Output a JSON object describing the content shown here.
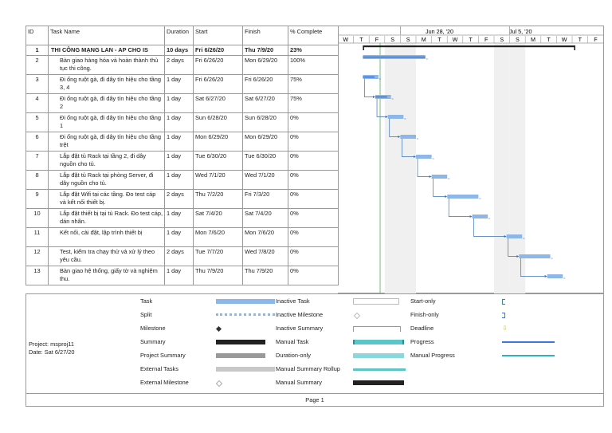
{
  "columns": {
    "id": "ID",
    "name": "Task Name",
    "duration": "Duration",
    "start": "Start",
    "finish": "Finish",
    "complete": "% Complete"
  },
  "timescale": {
    "weeks": [
      "Jun 28, '20",
      "Jul 5, '20"
    ],
    "days": [
      "W",
      "T",
      "F",
      "S",
      "S",
      "M",
      "T",
      "W",
      "T",
      "F",
      "S",
      "S",
      "M",
      "T",
      "W",
      "T",
      "F"
    ]
  },
  "tasks": [
    {
      "id": "1",
      "name": "THI CÔNG MẠNG LAN - AP CHO IS",
      "duration": "10 days",
      "start": "Fri 6/26/20",
      "finish": "Thu 7/9/20",
      "complete": "23%"
    },
    {
      "id": "2",
      "name": "Bàn giao hàng hóa và hoàn thành thủ tục thi công.",
      "duration": "2 days",
      "start": "Fri 6/26/20",
      "finish": "Mon 6/29/20",
      "complete": "100%"
    },
    {
      "id": "3",
      "name": "Đi ống ruột gà, đi dây tín hiệu cho tầng 3, 4",
      "duration": "1 day",
      "start": "Fri 6/26/20",
      "finish": "Fri 6/26/20",
      "complete": "75%"
    },
    {
      "id": "4",
      "name": "Đi ống ruột gà, đi dây tín hiệu cho tầng 2",
      "duration": "1 day",
      "start": "Sat 6/27/20",
      "finish": "Sat 6/27/20",
      "complete": "75%"
    },
    {
      "id": "5",
      "name": "Đi ống ruột gà, đi dây tín hiệu cho tầng 1",
      "duration": "1 day",
      "start": "Sun 6/28/20",
      "finish": "Sun 6/28/20",
      "complete": "0%"
    },
    {
      "id": "6",
      "name": "Đi ống ruột gà, đi dây tín hiệu cho tầng trệt",
      "duration": "1 day",
      "start": "Mon 6/29/20",
      "finish": "Mon 6/29/20",
      "complete": "0%"
    },
    {
      "id": "7",
      "name": "Lắp đặt tủ Rack tại tầng 2, đi dây nguồn cho tủ.",
      "duration": "1 day",
      "start": "Tue 6/30/20",
      "finish": "Tue 6/30/20",
      "complete": "0%"
    },
    {
      "id": "8",
      "name": "Lắp đặt tủ Rack tại phòng Server, đi dây nguồn cho tủ.",
      "duration": "1 day",
      "start": "Wed 7/1/20",
      "finish": "Wed 7/1/20",
      "complete": "0%"
    },
    {
      "id": "9",
      "name": "Lắp đặt Wifi tại các tầng. Đo test cáp và kết nối thiết bị.",
      "duration": "2 days",
      "start": "Thu 7/2/20",
      "finish": "Fri 7/3/20",
      "complete": "0%"
    },
    {
      "id": "10",
      "name": "Lắp đặt thiết bị tại tủ Rack. Đo test cáp, dán nhãn.",
      "duration": "1 day",
      "start": "Sat 7/4/20",
      "finish": "Sat 7/4/20",
      "complete": "0%"
    },
    {
      "id": "11",
      "name": "Kết nối, cài đặt, lập trình thiết bị",
      "duration": "1 day",
      "start": "Mon 7/6/20",
      "finish": "Mon 7/6/20",
      "complete": "0%"
    },
    {
      "id": "12",
      "name": "Test, kiểm tra chạy thử và xử lý theo yêu cầu.",
      "duration": "2 days",
      "start": "Tue 7/7/20",
      "finish": "Wed 7/8/20",
      "complete": "0%"
    },
    {
      "id": "13",
      "name": "Bàn giao hệ thống, giấy tờ và nghiệm thu.",
      "duration": "1 day",
      "start": "Thu 7/9/20",
      "finish": "Thu 7/9/20",
      "complete": "0%"
    }
  ],
  "project": {
    "line1": "Project: msproj11",
    "line2": "Date: Sat 6/27/20"
  },
  "legend": {
    "col1": [
      "Task",
      "Split",
      "Milestone",
      "Summary",
      "Project Summary",
      "External Tasks",
      "External Milestone"
    ],
    "col2": [
      "Inactive Task",
      "Inactive Milestone",
      "Inactive Summary",
      "Manual Task",
      "Duration-only",
      "Manual Summary Rollup",
      "Manual Summary"
    ],
    "col3": [
      "Start-only",
      "Finish-only",
      "Deadline",
      "Progress",
      "Manual Progress"
    ]
  },
  "footer": {
    "page": "Page 1"
  },
  "colors": {
    "task": "#8db7e8",
    "progress": "#3b78d8",
    "manual": "#5bc6c9",
    "grid": "#9a9a9a",
    "nonwork": "#f0f0f0",
    "today": "#4caf50"
  }
}
